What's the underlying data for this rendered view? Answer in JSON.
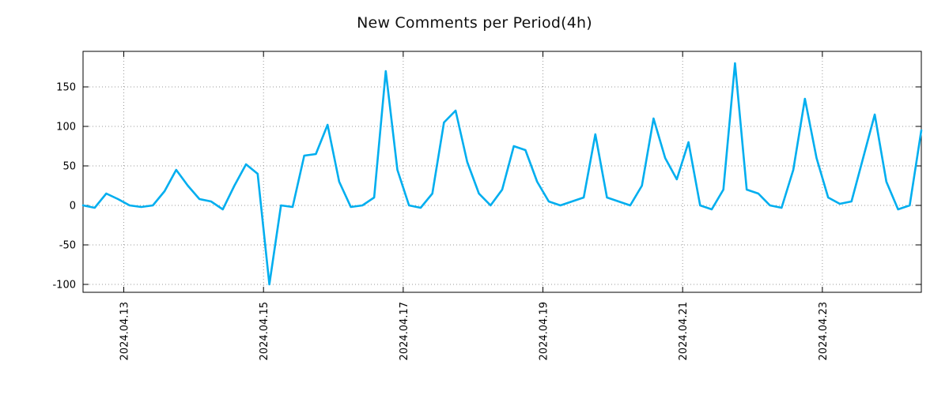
{
  "chart_data": {
    "type": "line",
    "title": "New Comments per Period(4h)",
    "period_hours": 4,
    "grid": true,
    "legend": "none",
    "line_color": "#00AEEF",
    "grid_color": "#999999",
    "border_color": "#000000",
    "ylim": [
      -110,
      195
    ],
    "y_ticks": [
      -100,
      -50,
      0,
      50,
      100,
      150
    ],
    "x_ticks": [
      {
        "label": "2024.04.13",
        "index": 3.5
      },
      {
        "label": "2024.04.15",
        "index": 15.5
      },
      {
        "label": "2024.04.17",
        "index": 27.5
      },
      {
        "label": "2024.04.19",
        "index": 39.5
      },
      {
        "label": "2024.04.21",
        "index": 51.5
      },
      {
        "label": "2024.04.23",
        "index": 63.5
      }
    ],
    "values": [
      0,
      -3,
      15,
      8,
      0,
      -2,
      0,
      18,
      45,
      25,
      8,
      5,
      -5,
      25,
      52,
      40,
      -100,
      0,
      -2,
      63,
      65,
      102,
      30,
      -2,
      0,
      10,
      170,
      45,
      0,
      -3,
      15,
      105,
      120,
      55,
      15,
      0,
      20,
      75,
      70,
      30,
      5,
      0,
      5,
      10,
      90,
      10,
      5,
      0,
      25,
      110,
      60,
      33,
      80,
      0,
      -5,
      20,
      180,
      20,
      15,
      0,
      -3,
      45,
      135,
      60,
      10,
      2,
      5,
      60,
      115,
      30,
      -5,
      0,
      95
    ]
  }
}
